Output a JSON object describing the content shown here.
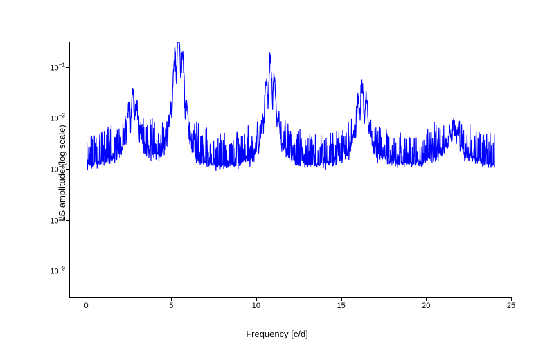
{
  "chart": {
    "type": "line",
    "xlabel": "Frequency [c/d]",
    "ylabel": "LS amplitude (log scale)",
    "label_fontsize": 13,
    "tick_fontsize": 11,
    "xlim": [
      -1,
      25
    ],
    "ylim_log": [
      -10,
      0
    ],
    "yscale": "log",
    "line_color": "#0000ff",
    "line_width": 1.2,
    "background_color": "#ffffff",
    "border_color": "#000000",
    "xticks": [
      0,
      5,
      10,
      15,
      20,
      25
    ],
    "yticks_exp": [
      -9,
      -7,
      -5,
      -3,
      -1
    ],
    "peaks": [
      {
        "freq": 5.4,
        "log_amp": 0.0
      },
      {
        "freq": 10.8,
        "log_amp": -1.2
      },
      {
        "freq": 16.2,
        "log_amp": -2.2
      },
      {
        "freq": 21.6,
        "log_amp": -3.8
      },
      {
        "freq": 2.7,
        "log_amp": -2.6
      }
    ],
    "noise_floor_log": -5.0,
    "noise_amplitude_log": 1.2,
    "deep_nulls_log": -8.5
  }
}
